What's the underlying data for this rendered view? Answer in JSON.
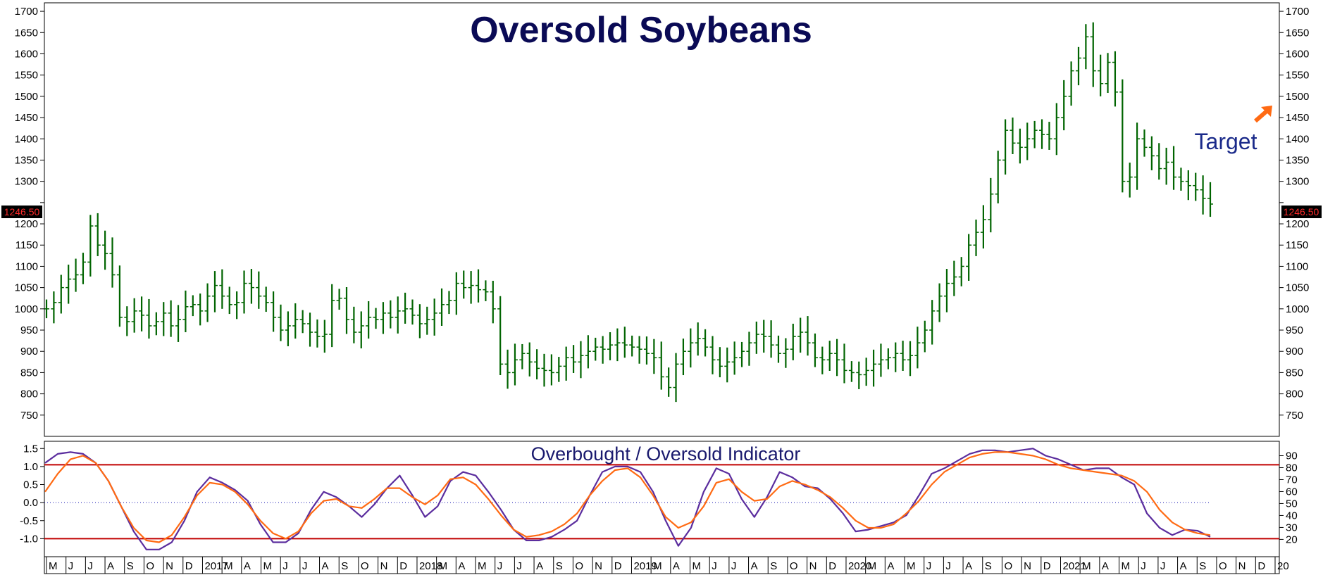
{
  "chart_data": [
    {
      "type": "bar",
      "subtype": "ohlc-price-bars",
      "title": "Oversold Soybeans",
      "annotation": "Target",
      "annotation_arrow": "up-right-arrow-icon",
      "last_price_label": "1246.50",
      "last_price": 1246.5,
      "ylim": [
        700,
        1720
      ],
      "y_ticks": [
        750,
        800,
        850,
        900,
        950,
        1000,
        1050,
        1100,
        1150,
        1200,
        1250,
        1300,
        1350,
        1400,
        1450,
        1500,
        1550,
        1600,
        1650,
        1700
      ],
      "y_tick_labels": [
        "750",
        "800",
        "850",
        "900",
        "950",
        "1000",
        "1050",
        "1100",
        "1150",
        "1200",
        "",
        "1300",
        "1350",
        "1400",
        "1450",
        "1500",
        "1550",
        "1600",
        "1650",
        "1700"
      ],
      "bar_color": "#006400",
      "series": [
        {
          "values": [
            1000,
            1015,
            1050,
            1070,
            1080,
            1110,
            1195,
            1150,
            1130,
            1080,
            980,
            970,
            995,
            985,
            960,
            970,
            990,
            960,
            975,
            1005,
            1010,
            995,
            1030,
            1055,
            1030,
            1010,
            1015,
            1060,
            1050,
            1030,
            1015,
            980,
            950,
            960,
            975,
            965,
            945,
            935,
            940,
            1020,
            1025,
            975,
            945,
            960,
            980,
            975,
            990,
            980,
            995,
            1000,
            985,
            965,
            975,
            990,
            1010,
            1020,
            1060,
            1050,
            1055,
            1045,
            1040,
            1000,
            870,
            850,
            880,
            895,
            875,
            860,
            855,
            850,
            865,
            885,
            875,
            890,
            900,
            910,
            905,
            915,
            920,
            915,
            910,
            905,
            895,
            885,
            840,
            815,
            870,
            900,
            920,
            930,
            910,
            880,
            865,
            875,
            885,
            900,
            920,
            940,
            935,
            915,
            895,
            905,
            935,
            945,
            920,
            885,
            880,
            895,
            880,
            855,
            850,
            845,
            855,
            870,
            880,
            885,
            895,
            880,
            890,
            920,
            950,
            995,
            1030,
            1060,
            1075,
            1100,
            1150,
            1180,
            1210,
            1270,
            1350,
            1420,
            1390,
            1380,
            1400,
            1420,
            1410,
            1400,
            1450,
            1500,
            1560,
            1590,
            1640,
            1560,
            1530,
            1580,
            1510,
            1300,
            1310,
            1400,
            1380,
            1360,
            1330,
            1345,
            1310,
            1300,
            1290,
            1280,
            1260,
            1246.5
          ]
        }
      ],
      "x_labels": [
        "M",
        "J",
        "J",
        "A",
        "S",
        "O",
        "N",
        "D",
        "2017",
        "M",
        "A",
        "M",
        "J",
        "J",
        "A",
        "S",
        "O",
        "N",
        "D",
        "2018",
        "M",
        "A",
        "M",
        "J",
        "J",
        "A",
        "S",
        "O",
        "N",
        "D",
        "2019",
        "M",
        "A",
        "M",
        "J",
        "J",
        "A",
        "S",
        "O",
        "N",
        "D",
        "2020",
        "M",
        "A",
        "M",
        "J",
        "J",
        "A",
        "S",
        "O",
        "N",
        "D",
        "2021",
        "M",
        "A",
        "M",
        "J",
        "J",
        "A",
        "S",
        "O",
        "N",
        "D",
        "20"
      ]
    },
    {
      "type": "line",
      "title": "Overbought / Oversold Indicator",
      "ylim_left": [
        -1.5,
        1.7
      ],
      "y_ticks_left": [
        -1.0,
        -0.5,
        0.0,
        0.5,
        1.0,
        1.5
      ],
      "y_tick_labels_left": [
        "-1.0",
        "-0.5",
        "0.0",
        "0.5",
        "1.0",
        "1.5"
      ],
      "y_ticks_right": [
        20,
        30,
        40,
        50,
        60,
        70,
        80,
        90
      ],
      "y_tick_labels_right": [
        "20",
        "30",
        "40",
        "50",
        "60",
        "70",
        "80",
        "90"
      ],
      "reference_lines": [
        1.05,
        -1.0
      ],
      "midline": 0.0,
      "overbought_line_color": "#c00000",
      "midline_color": "#4040c0",
      "series": [
        {
          "color": "#5b2d9e",
          "values": [
            1.1,
            1.35,
            1.4,
            1.35,
            1.1,
            0.6,
            -0.1,
            -0.8,
            -1.3,
            -1.3,
            -1.1,
            -0.5,
            0.3,
            0.7,
            0.55,
            0.35,
            0.05,
            -0.6,
            -1.1,
            -1.1,
            -0.85,
            -0.2,
            0.3,
            0.15,
            -0.1,
            -0.4,
            -0.05,
            0.4,
            0.75,
            0.2,
            -0.4,
            -0.1,
            0.6,
            0.85,
            0.75,
            0.3,
            -0.2,
            -0.75,
            -1.05,
            -1.05,
            -0.95,
            -0.75,
            -0.5,
            0.2,
            0.85,
            1.0,
            1.0,
            0.85,
            0.3,
            -0.5,
            -1.2,
            -0.7,
            0.3,
            0.95,
            0.8,
            0.1,
            -0.4,
            0.15,
            0.85,
            0.7,
            0.45,
            0.4,
            0.1,
            -0.3,
            -0.8,
            -0.75,
            -0.65,
            -0.55,
            -0.35,
            0.2,
            0.8,
            0.95,
            1.15,
            1.35,
            1.45,
            1.45,
            1.4,
            1.45,
            1.5,
            1.3,
            1.2,
            1.05,
            0.9,
            0.95,
            0.95,
            0.7,
            0.5,
            -0.3,
            -0.7,
            -0.9,
            -0.75,
            -0.78,
            -0.95
          ]
        },
        {
          "color": "#ff6a13",
          "values": [
            0.3,
            0.8,
            1.2,
            1.3,
            1.1,
            0.6,
            -0.1,
            -0.7,
            -1.05,
            -1.1,
            -0.9,
            -0.4,
            0.2,
            0.55,
            0.5,
            0.3,
            -0.05,
            -0.5,
            -0.85,
            -1.0,
            -0.8,
            -0.3,
            0.05,
            0.1,
            -0.1,
            -0.15,
            0.1,
            0.4,
            0.4,
            0.15,
            -0.05,
            0.2,
            0.65,
            0.7,
            0.5,
            0.1,
            -0.35,
            -0.75,
            -0.95,
            -0.9,
            -0.8,
            -0.6,
            -0.3,
            0.2,
            0.6,
            0.9,
            0.95,
            0.7,
            0.2,
            -0.4,
            -0.7,
            -0.55,
            -0.1,
            0.55,
            0.65,
            0.3,
            0.05,
            0.1,
            0.45,
            0.6,
            0.5,
            0.35,
            0.15,
            -0.15,
            -0.5,
            -0.7,
            -0.7,
            -0.6,
            -0.3,
            0.05,
            0.5,
            0.85,
            1.05,
            1.25,
            1.35,
            1.4,
            1.4,
            1.35,
            1.3,
            1.2,
            1.05,
            0.95,
            0.9,
            0.85,
            0.8,
            0.75,
            0.6,
            0.3,
            -0.2,
            -0.55,
            -0.75,
            -0.85,
            -0.9
          ]
        }
      ]
    }
  ]
}
